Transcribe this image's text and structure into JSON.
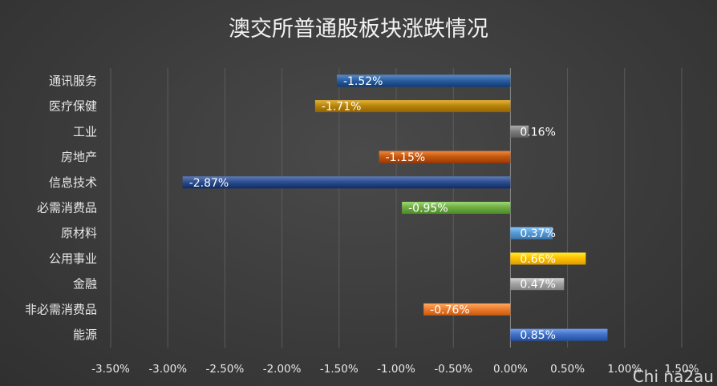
{
  "chart_data": {
    "type": "bar",
    "orientation": "horizontal",
    "title": "澳交所普通股板块涨跌情况",
    "categories": [
      "通讯服务",
      "医疗保健",
      "工业",
      "房地产",
      "信息技术",
      "必需消费品",
      "原材料",
      "公用事业",
      "金融",
      "非必需消费品",
      "能源"
    ],
    "values": [
      -1.52,
      -1.71,
      0.16,
      -1.15,
      -2.87,
      -0.95,
      0.37,
      0.66,
      0.47,
      -0.76,
      0.85
    ],
    "data_labels": [
      "-1.52%",
      "-1.71%",
      "0.16%",
      "-1.15%",
      "-2.87%",
      "-0.95%",
      "0.37%",
      "0.66%",
      "0.47%",
      "-0.76%",
      "0.85%"
    ],
    "colors": [
      "#2e5f9e",
      "#b8860b",
      "#7f7f7f",
      "#c55a11",
      "#2f4f8f",
      "#70ad47",
      "#5b9bd5",
      "#ffc000",
      "#a5a5a5",
      "#ed7d31",
      "#4472c4"
    ],
    "xlim": [
      -3.5,
      1.5
    ],
    "x_ticks": [
      -3.5,
      -3.0,
      -2.5,
      -2.0,
      -1.5,
      -1.0,
      -0.5,
      0.0,
      0.5,
      1.0,
      1.5
    ],
    "x_tick_labels": [
      "-3.50%",
      "-3.00%",
      "-2.50%",
      "-2.00%",
      "-1.50%",
      "-1.00%",
      "-0.50%",
      "0.00%",
      "0.50%",
      "1.00%",
      "1.50%"
    ],
    "grid": true,
    "legend": "none",
    "xlabel": "",
    "ylabel": ""
  },
  "watermark": "Chi na2au"
}
